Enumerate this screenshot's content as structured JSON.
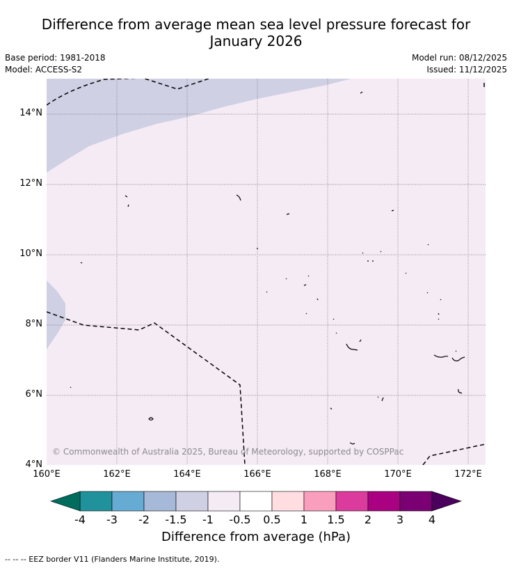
{
  "header": {
    "title_line1": "Difference from average mean sea level pressure forecast for",
    "title_line2": "January 2026",
    "base_period": "Base period: 1981-2018",
    "model": "Model: ACCESS-S2",
    "model_run": "Model run: 08/12/2025",
    "issued": "Issued: 11/12/2025"
  },
  "map": {
    "lat_labels": [
      "14°N",
      "12°N",
      "10°N",
      "8°N",
      "6°N",
      "4°N"
    ],
    "lon_labels": [
      "160°E",
      "162°E",
      "164°E",
      "166°E",
      "168°E",
      "170°E",
      "172°E"
    ],
    "copyright": "© Commonwealth of Australia 2025, Bureau of Meteorology, supported by COSPPac"
  },
  "colorbar": {
    "title": "Difference from average (hPa)",
    "ticks": [
      "-4",
      "-3",
      "-2",
      "-1.5",
      "-1",
      "-0.5",
      "0.5",
      "1",
      "1.5",
      "2",
      "3",
      "4"
    ],
    "colors": [
      "#006c5e",
      "#1f929b",
      "#66abd4",
      "#a6b9d8",
      "#d0d0e5",
      "#f5ebf5",
      "#ffffff",
      "#ffdde0",
      "#f99fbd",
      "#db3b9c",
      "#aa0082",
      "#7a0074",
      "#4b005e"
    ]
  },
  "footnote": "--  --  -- EEZ border V11 (Flanders Marine Institute, 2019)."
}
